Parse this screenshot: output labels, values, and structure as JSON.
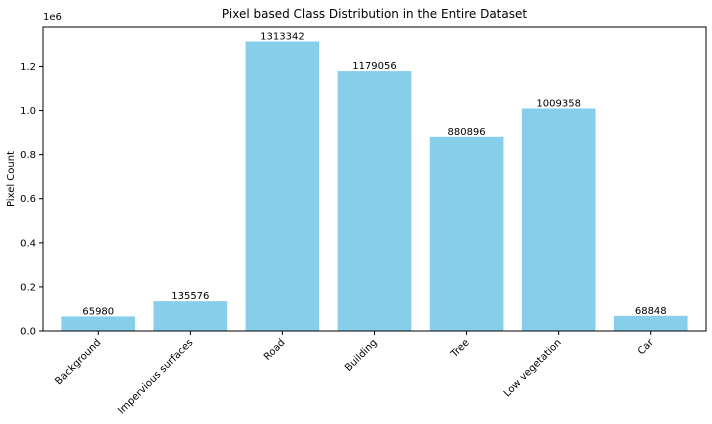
{
  "colors": {
    "bar": "#87CEEB",
    "axis": "#000000",
    "background": "#ffffff"
  },
  "chart_data": {
    "type": "bar",
    "title": "Pixel based Class Distribution in the Entire Dataset",
    "xlabel": "",
    "ylabel": "Pixel Count",
    "offset_text": "1e6",
    "categories": [
      "Background",
      "Impervious surfaces",
      "Road",
      "Building",
      "Tree",
      "Low vegetation",
      "Car"
    ],
    "values": [
      65980,
      135576,
      1313342,
      1179056,
      880896,
      1009358,
      68848
    ],
    "value_labels": [
      "65980",
      "135576",
      "1313342",
      "1179056",
      "880896",
      "1009358",
      "68848"
    ],
    "ylim": [
      0,
      1379009
    ],
    "yticks": [
      0,
      200000,
      400000,
      600000,
      800000,
      1000000,
      1200000
    ],
    "ytick_labels": [
      "0.0",
      "0.2",
      "0.4",
      "0.6",
      "0.8",
      "1.0",
      "1.2"
    ],
    "grid": false,
    "legend": false
  }
}
